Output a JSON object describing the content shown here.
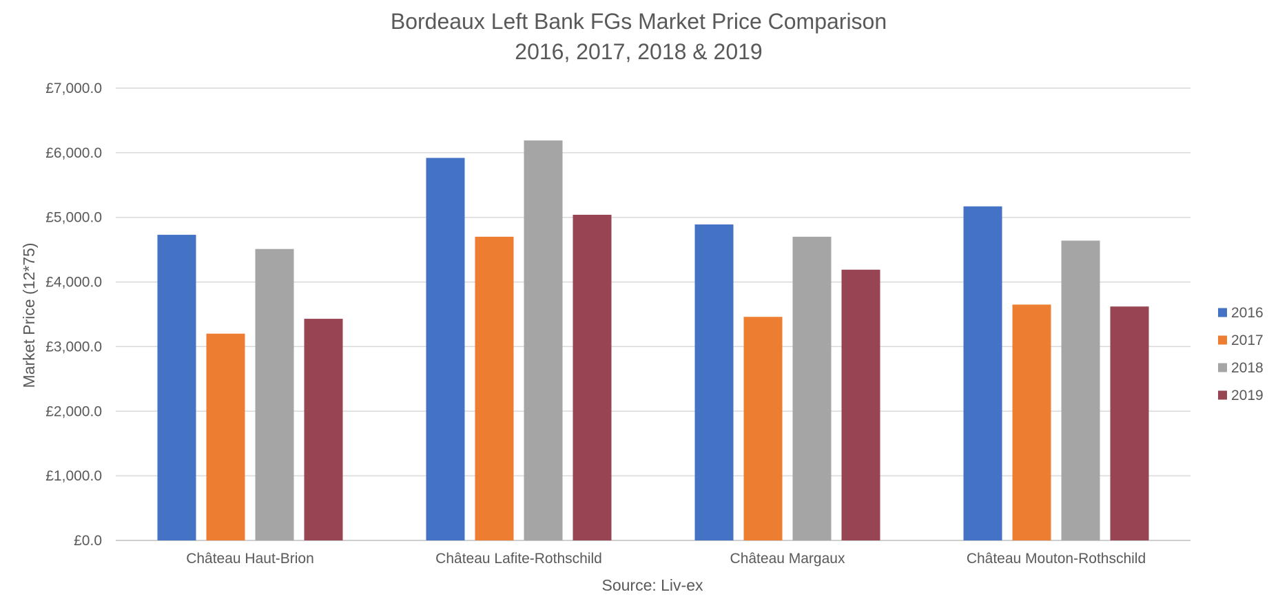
{
  "chart_data": {
    "type": "bar",
    "title": "Bordeaux Left Bank FGs Market Price Comparison",
    "subtitle": "2016, 2017, 2018 & 2019",
    "xlabel": "Source: Liv-ex",
    "ylabel": "Market Price (12*75)",
    "ylim": [
      0,
      7000
    ],
    "yticks": [
      0,
      1000,
      2000,
      3000,
      4000,
      5000,
      6000,
      7000
    ],
    "ytick_labels": [
      "£0.0",
      "£1,000.0",
      "£2,000.0",
      "£3,000.0",
      "£4,000.0",
      "£5,000.0",
      "£6,000.0",
      "£7,000.0"
    ],
    "grid": true,
    "legend_position": "right",
    "categories": [
      "Château Haut-Brion",
      "Château Lafite-Rothschild",
      "Château Margaux",
      "Château Mouton-Rothschild"
    ],
    "series": [
      {
        "name": "2016",
        "color": "#4472c4",
        "values": [
          4730,
          5920,
          4890,
          5170
        ]
      },
      {
        "name": "2017",
        "color": "#ed7d31",
        "values": [
          3200,
          4700,
          3460,
          3650
        ]
      },
      {
        "name": "2018",
        "color": "#a5a5a5",
        "values": [
          4510,
          6190,
          4700,
          4640
        ]
      },
      {
        "name": "2019",
        "color": "#974552",
        "values": [
          3430,
          5040,
          4190,
          3620
        ]
      }
    ]
  }
}
